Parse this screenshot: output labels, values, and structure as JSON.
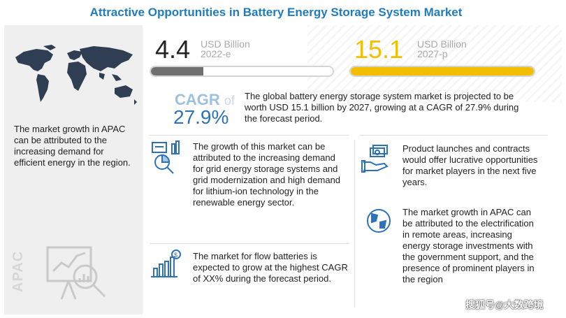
{
  "title": "Attractive Opportunities in Battery Energy Storage System Market",
  "left": {
    "text": "The market growth in APAC can be attributed to the increasing demand for efficient energy in the region.",
    "region_label": "APAC"
  },
  "stats": {
    "value_2022": "4.4",
    "unit_2022": "USD Billion",
    "year_2022": "2022-e",
    "value_2027": "15.1",
    "unit_2027": "USD Billion",
    "year_2027": "2027-p",
    "bar_2022_fraction": 0.29,
    "bar_2027_fraction": 1.0,
    "cagr_label": "CAGR",
    "cagr_of": "of",
    "cagr_value": "27.9%",
    "summary": "The global battery energy storage system market is projected to be worth USD 15.1 billion by 2027, growing at a CAGR of 27.9% during the forecast period."
  },
  "insights": [
    {
      "icon": "chart-magnifier-icon",
      "text": "The growth of this market can be attributed to the increasing demand for grid energy storage systems and grid modernization and high demand for lithium-ion technology in the renewable energy sector."
    },
    {
      "icon": "dollar-growth-icon",
      "text": "The market for flow batteries is expected to grow at the highest CAGR of XX% during the forecast period."
    },
    {
      "icon": "money-hand-icon",
      "text": "Product launches and contracts would offer lucrative opportunities for market players in the next five years."
    },
    {
      "icon": "globe-icon",
      "text": "The market growth in APAC can be attributed to the electrification in remote areas, increasing energy storage investments with the government support, and the presence of prominent players in the region"
    }
  ],
  "watermark": "搜狐号@大数跨境",
  "colors": {
    "title": "#1f7cc0",
    "bar_2022": "#707070",
    "bar_2027": "#f2be00",
    "cagr": "#2d72b8",
    "map": "#2f3e52"
  }
}
